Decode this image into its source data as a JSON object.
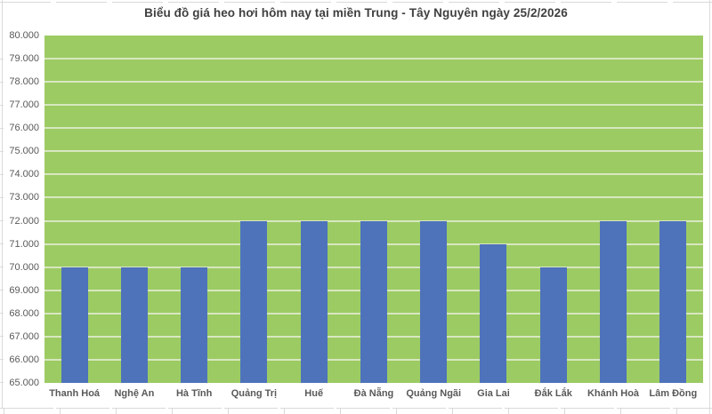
{
  "chart_data": {
    "type": "bar",
    "title": "Biểu đồ giá heo hơi hôm nay tại miền Trung - Tây Nguyên ngày 25/2/2026",
    "categories": [
      "Thanh Hoá",
      "Nghệ An",
      "Hà Tĩnh",
      "Quảng Trị",
      "Huế",
      "Đà Nẵng",
      "Quảng Ngãi",
      "Gia Lai",
      "Đắk Lắk",
      "Khánh Hoà",
      "Lâm Đồng"
    ],
    "values": [
      70000,
      70000,
      70000,
      72000,
      72000,
      72000,
      72000,
      71000,
      70000,
      72000,
      72000
    ],
    "xlabel": "",
    "ylabel": "",
    "ylim": [
      65000,
      80000
    ],
    "ytick_step": 1000,
    "ytick_labels": [
      "65.000",
      "66.000",
      "67.000",
      "68.000",
      "69.000",
      "70.000",
      "71.000",
      "72.000",
      "73.000",
      "74.000",
      "75.000",
      "76.000",
      "77.000",
      "78.000",
      "79.000",
      "80.000"
    ],
    "grid": "horizontal",
    "legend": "none",
    "colors": {
      "bar": "#4e73ba",
      "plot_background": "#9ccb63",
      "gridline": "#d8e7c0",
      "title_text": "#404040",
      "axis_text": "#595959"
    }
  }
}
